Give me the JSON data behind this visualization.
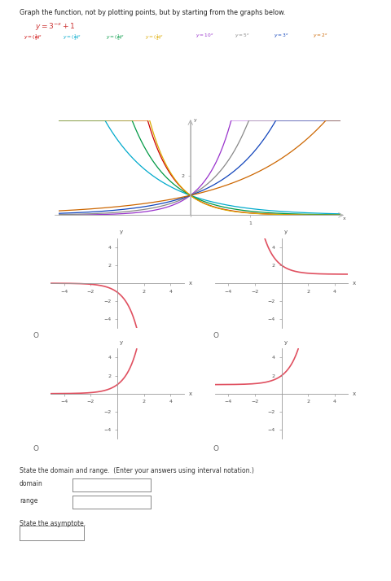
{
  "title_text": "Graph the function, not by plotting points, but by starting from the graphs below.",
  "function_label": "y = 3⁻ˣ + 1",
  "legend_bases": [
    0.1111,
    0.3333,
    0.2,
    0.1,
    10,
    5,
    3,
    2
  ],
  "legend_colors": [
    "#cc0000",
    "#00aacc",
    "#009944",
    "#ddaa00",
    "#9933cc",
    "#888888",
    "#1144bb",
    "#cc6600"
  ],
  "small_xlim": [
    -5,
    5
  ],
  "small_ylim": [
    -5,
    5
  ],
  "bg_color": "#ffffff",
  "curve_color": "#e05060",
  "curve_color_light": "#e8909a"
}
